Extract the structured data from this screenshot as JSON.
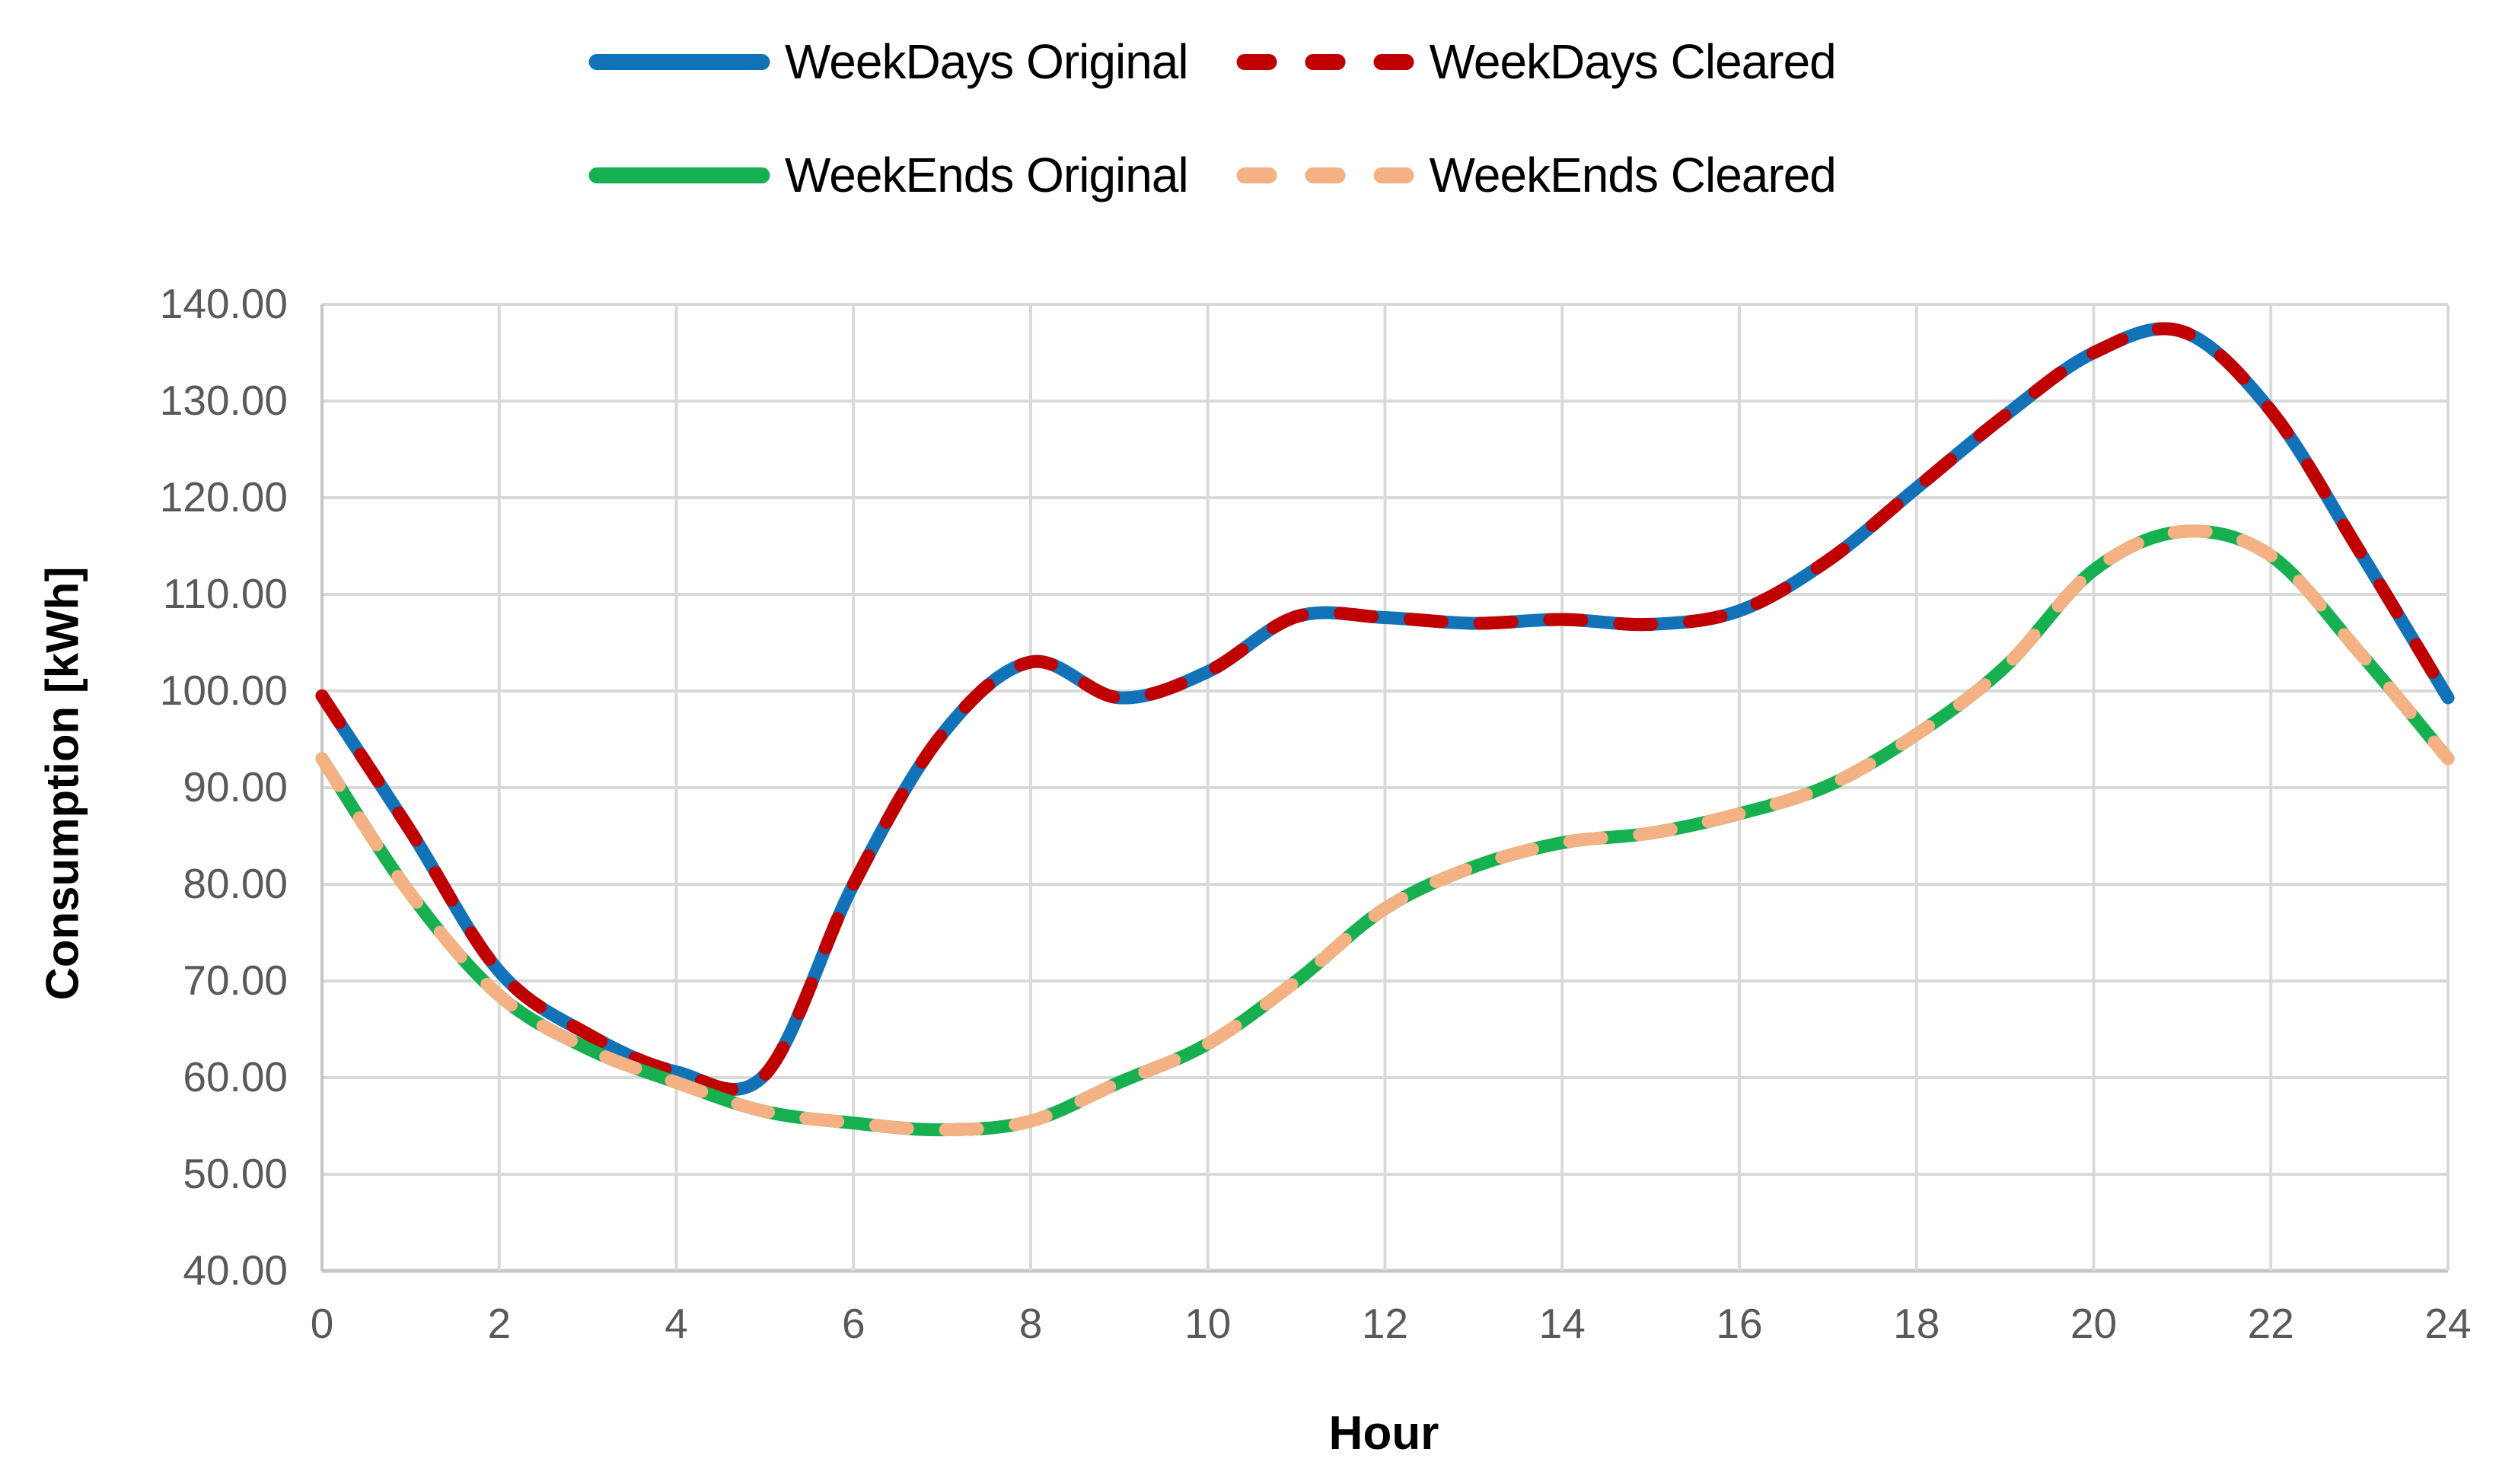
{
  "chart_data": {
    "type": "line",
    "title": "",
    "xlabel": "Hour",
    "ylabel": "Consumption [kWh]",
    "xlim": [
      0,
      24
    ],
    "ylim": [
      40,
      140
    ],
    "grid": true,
    "legend_position": "top",
    "x_tick_labels": [
      "0",
      "2",
      "4",
      "6",
      "8",
      "10",
      "12",
      "14",
      "16",
      "18",
      "20",
      "22",
      "24"
    ],
    "y_tick_labels": [
      "40.00",
      "50.00",
      "60.00",
      "70.00",
      "80.00",
      "90.00",
      "100.00",
      "110.00",
      "120.00",
      "130.00",
      "140.00"
    ],
    "x": [
      0,
      1,
      2,
      3,
      4,
      5,
      6,
      7,
      8,
      9,
      10,
      11,
      12,
      13,
      14,
      15,
      16,
      17,
      18,
      19,
      20,
      21,
      22,
      23,
      24
    ],
    "series": [
      {
        "name": "WeekDays Original",
        "color": "#1272B8",
        "line_style": "solid",
        "values": [
          99.5,
          85.5,
          71.0,
          64.5,
          60.6,
          60.3,
          80.0,
          95.5,
          103.0,
          99.3,
          102.0,
          107.7,
          107.6,
          107.0,
          107.4,
          106.9,
          108.3,
          113.5,
          121.0,
          128.5,
          135.0,
          137.2,
          129.0,
          114.5,
          99.3
        ]
      },
      {
        "name": "WeekDays Cleared",
        "color": "#C00000",
        "line_style": "dashed",
        "values": [
          99.5,
          85.5,
          71.0,
          64.5,
          60.6,
          60.3,
          80.0,
          95.5,
          103.0,
          99.3,
          102.0,
          107.7,
          107.6,
          107.0,
          107.4,
          106.9,
          108.3,
          113.5,
          121.0,
          128.5,
          135.0,
          137.2,
          129.0,
          114.5,
          99.3
        ]
      },
      {
        "name": "WeekEnds Original",
        "color": "#17B050",
        "line_style": "solid",
        "values": [
          93.0,
          79.0,
          68.5,
          63.0,
          59.5,
          56.5,
          55.3,
          54.6,
          55.5,
          59.5,
          63.5,
          70.0,
          77.5,
          81.8,
          84.3,
          85.3,
          87.3,
          90.2,
          95.5,
          102.5,
          112.5,
          116.5,
          114.0,
          104.0,
          93.0
        ]
      },
      {
        "name": "WeekEnds Cleared",
        "color": "#F4B183",
        "line_style": "dashed",
        "values": [
          93.0,
          79.0,
          68.5,
          63.0,
          59.5,
          56.5,
          55.3,
          54.6,
          55.5,
          59.5,
          63.5,
          70.0,
          77.5,
          81.8,
          84.3,
          85.3,
          87.3,
          90.2,
          95.5,
          102.5,
          112.5,
          116.5,
          114.0,
          104.0,
          93.0
        ]
      }
    ]
  },
  "axes": {
    "x_title": "Hour",
    "y_title": "Consumption [kWh]"
  },
  "styles": {
    "grid_color": "#D9D9D9",
    "axis_line_color": "#C6C6C6",
    "tick_label_color": "#595959",
    "background": "#FFFFFF"
  }
}
